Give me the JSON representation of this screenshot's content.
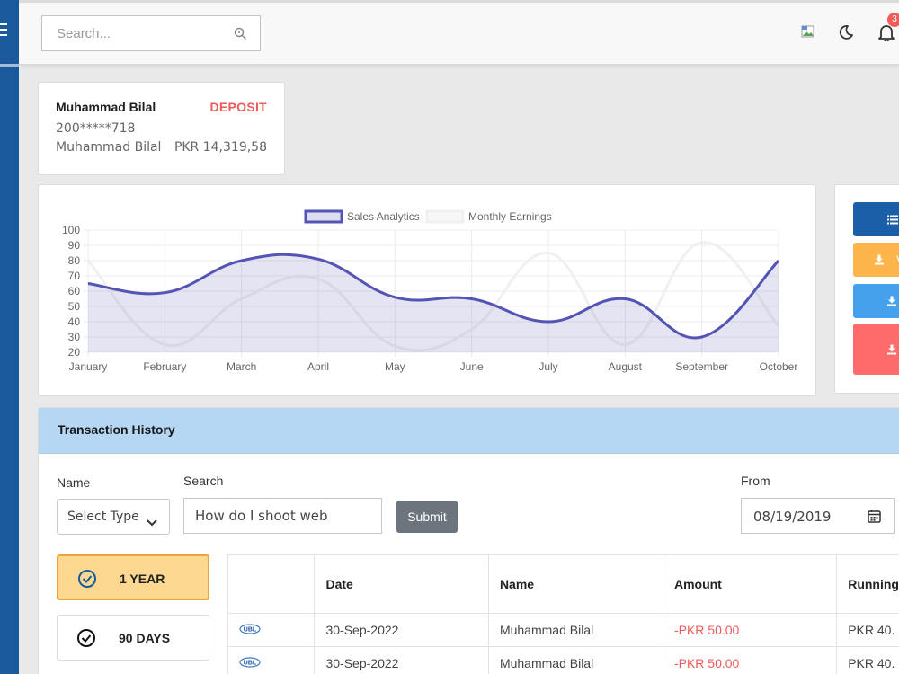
{
  "topbar": {
    "search_placeholder": "Search...",
    "notification_count": "3"
  },
  "account": {
    "name": "Muhammad Bilal",
    "type": "DEPOSIT",
    "number": "200*****718",
    "holder": "Muhammad Bilal",
    "balance": "PKR 14,319,58"
  },
  "chart_data": {
    "type": "line",
    "categories": [
      "January",
      "February",
      "March",
      "April",
      "May",
      "June",
      "July",
      "August",
      "September",
      "October"
    ],
    "series": [
      {
        "name": "Sales Analytics",
        "values": [
          65,
          59,
          80,
          81,
          56,
          55,
          40,
          55,
          30,
          80
        ],
        "color": "#5454b4",
        "fill": true
      },
      {
        "name": "Monthly Earnings",
        "values": [
          80,
          25,
          55,
          68,
          24,
          35,
          85,
          25,
          92,
          37
        ],
        "color": "#f0f0f0",
        "fill": false
      }
    ],
    "ylim": [
      20,
      100
    ],
    "yticks": [
      100,
      90,
      80,
      70,
      60,
      50,
      40,
      30,
      20
    ],
    "legend": "top",
    "grid": true
  },
  "quick_actions": {
    "colors": [
      "#1b5fa8",
      "#fdb54b",
      "#45a1ec",
      "#ff6a6a"
    ],
    "second_label": "V"
  },
  "transactions": {
    "title": "Transaction History",
    "filters": {
      "name_label": "Name",
      "type_selected": "Select Type",
      "search_label": "Search",
      "search_value": "How do I shoot web",
      "submit_label": "Submit",
      "from_label": "From",
      "from_date": "08/19/2019"
    },
    "periods": [
      "1 YEAR",
      "90 DAYS"
    ],
    "columns": [
      "",
      "Date",
      "Name",
      "Amount",
      "Running"
    ],
    "rows": [
      {
        "bank": "UBL",
        "date": "30-Sep-2022",
        "name": "Muhammad Bilal",
        "amount": "-PKR 50.00",
        "running": "PKR 40."
      },
      {
        "bank": "UBL",
        "date": "30-Sep-2022",
        "name": "Muhammad Bilal",
        "amount": "-PKR 50.00",
        "running": "PKR 40."
      }
    ]
  }
}
